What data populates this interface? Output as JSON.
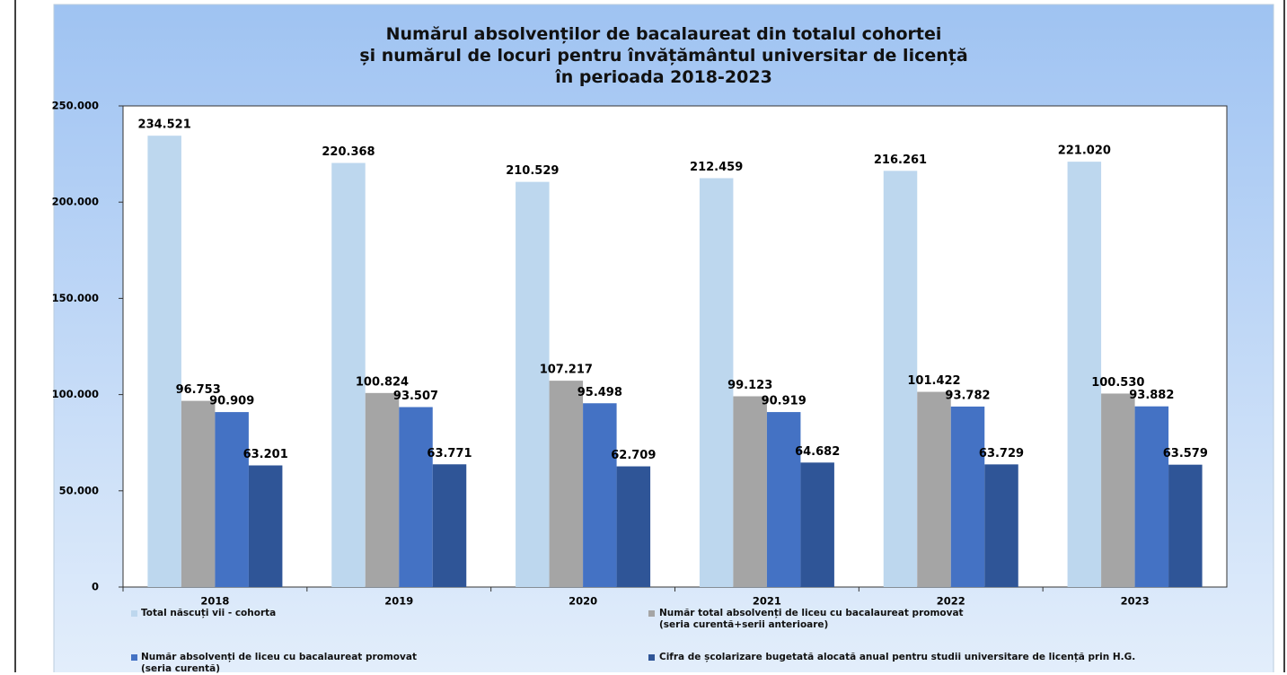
{
  "chart_data": {
    "type": "bar",
    "title": "Numărul absolvenților de bacalaureat din totalul cohortei\nși numărul de locuri pentru învățământul universitar de licență\nîn perioada 2018-2023",
    "categories": [
      "2018",
      "2019",
      "2020",
      "2021",
      "2022",
      "2023"
    ],
    "series": [
      {
        "name": "Total născuți vii - cohorta",
        "color": "#bdd7ee",
        "values": [
          234521,
          220368,
          210529,
          212459,
          216261,
          221020
        ],
        "value_labels": [
          "234.521",
          "220.368",
          "210.529",
          "212.459",
          "216.261",
          "221.020"
        ]
      },
      {
        "name": "Număr total absolvenți de liceu cu bacalaureat promovat\n(seria curentă+serii anterioare)",
        "color": "#a5a5a5",
        "values": [
          96753,
          100824,
          107217,
          99123,
          101422,
          100530
        ],
        "value_labels": [
          "96.753",
          "100.824",
          "107.217",
          "99.123",
          "101.422",
          "100.530"
        ]
      },
      {
        "name": "Număr absolvenți de liceu cu bacalaureat promovat\n(seria curentă)",
        "color": "#4472c4",
        "values": [
          90909,
          93507,
          95498,
          90919,
          93782,
          93882
        ],
        "value_labels": [
          "90.909",
          "93.507",
          "95.498",
          "90.919",
          "93.782",
          "93.882"
        ]
      },
      {
        "name": "Cifra de școlarizare bugetată alocată anual pentru studii universitare de licență prin H.G.",
        "color": "#2f5597",
        "values": [
          63201,
          63771,
          62709,
          64682,
          63729,
          63579
        ],
        "value_labels": [
          "63.201",
          "63.771",
          "62.709",
          "64.682",
          "63.729",
          "63.579"
        ]
      }
    ],
    "ylim": [
      0,
      250000
    ],
    "yticks": [
      0,
      {
        "value": 50000,
        "label": "50.000"
      },
      {
        "value": 100000,
        "label": "100.000"
      },
      {
        "value": 150000,
        "label": "150.000"
      },
      {
        "value": 200000,
        "label": "200.000"
      },
      {
        "value": 250000,
        "label": "250.000"
      }
    ]
  }
}
